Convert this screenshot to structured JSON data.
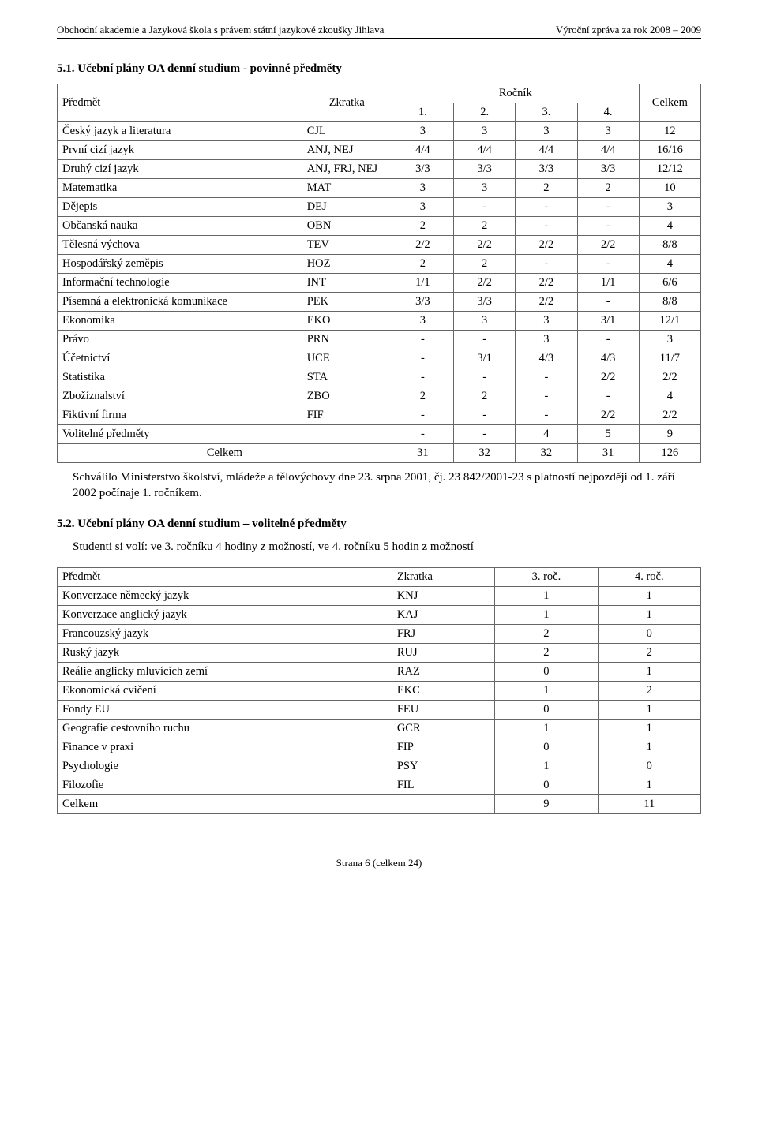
{
  "header": {
    "left": "Obchodní akademie a Jazyková škola s právem státní jazykové zkoušky Jihlava",
    "right": "Výroční zpráva za rok 2008 – 2009"
  },
  "sec1": {
    "heading": "5.1.  Učební plány OA denní studium - povinné předměty",
    "col_subject": "Předmět",
    "col_abbrev": "Zkratka",
    "col_year": "Ročník",
    "col_total": "Celkem",
    "year_cols": [
      "1.",
      "2.",
      "3.",
      "4."
    ],
    "rows": [
      {
        "s": "Český jazyk a literatura",
        "a": "CJL",
        "v": [
          "3",
          "3",
          "3",
          "3",
          "12"
        ]
      },
      {
        "s": "První cizí jazyk",
        "a": "ANJ, NEJ",
        "v": [
          "4/4",
          "4/4",
          "4/4",
          "4/4",
          "16/16"
        ]
      },
      {
        "s": "Druhý cizí jazyk",
        "a": "ANJ, FRJ, NEJ",
        "v": [
          "3/3",
          "3/3",
          "3/3",
          "3/3",
          "12/12"
        ]
      },
      {
        "s": "Matematika",
        "a": "MAT",
        "v": [
          "3",
          "3",
          "2",
          "2",
          "10"
        ]
      },
      {
        "s": "Dějepis",
        "a": "DEJ",
        "v": [
          "3",
          "-",
          "-",
          "-",
          "3"
        ]
      },
      {
        "s": "Občanská nauka",
        "a": "OBN",
        "v": [
          "2",
          "2",
          "-",
          "-",
          "4"
        ]
      },
      {
        "s": "Tělesná výchova",
        "a": "TEV",
        "v": [
          "2/2",
          "2/2",
          "2/2",
          "2/2",
          "8/8"
        ]
      },
      {
        "s": "Hospodářský zeměpis",
        "a": "HOZ",
        "v": [
          "2",
          "2",
          "-",
          "-",
          "4"
        ]
      },
      {
        "s": "Informační technologie",
        "a": "INT",
        "v": [
          "1/1",
          "2/2",
          "2/2",
          "1/1",
          "6/6"
        ]
      },
      {
        "s": "Písemná a elektronická komunikace",
        "a": "PEK",
        "v": [
          "3/3",
          "3/3",
          "2/2",
          "-",
          "8/8"
        ]
      },
      {
        "s": "Ekonomika",
        "a": "EKO",
        "v": [
          "3",
          "3",
          "3",
          "3/1",
          "12/1"
        ]
      },
      {
        "s": "Právo",
        "a": "PRN",
        "v": [
          "-",
          "-",
          "3",
          "-",
          "3"
        ]
      },
      {
        "s": "Účetnictví",
        "a": "UCE",
        "v": [
          "-",
          "3/1",
          "4/3",
          "4/3",
          "11/7"
        ]
      },
      {
        "s": "Statistika",
        "a": "STA",
        "v": [
          "-",
          "-",
          "-",
          "2/2",
          "2/2"
        ]
      },
      {
        "s": "Zbožíznalství",
        "a": "ZBO",
        "v": [
          "2",
          "2",
          "-",
          "-",
          "4"
        ]
      },
      {
        "s": "Fiktivní firma",
        "a": "FIF",
        "v": [
          "-",
          "-",
          "-",
          "2/2",
          "2/2"
        ]
      },
      {
        "s": "Volitelné předměty",
        "a": "",
        "v": [
          "-",
          "-",
          "4",
          "5",
          "9"
        ]
      }
    ],
    "total_label": "Celkem",
    "total_vals": [
      "31",
      "32",
      "32",
      "31",
      "126"
    ],
    "note": "Schválilo Ministerstvo školství, mládeže a tělovýchovy dne 23. srpna 2001, čj. 23 842/2001-23 s platností nejpozději od 1. září 2002 počínaje 1. ročníkem."
  },
  "sec2": {
    "heading": "5.2.  Učební plány OA denní studium – volitelné předměty",
    "intro": "Studenti si volí: ve 3. ročníku 4 hodiny z možností, ve 4. ročníku 5 hodin z možností",
    "col_subject": "Předmět",
    "col_abbrev": "Zkratka",
    "col3": "3. roč.",
    "col4": "4. roč.",
    "rows": [
      {
        "s": "Konverzace německý jazyk",
        "a": "KNJ",
        "v": [
          "1",
          "1"
        ]
      },
      {
        "s": "Konverzace anglický jazyk",
        "a": "KAJ",
        "v": [
          "1",
          "1"
        ]
      },
      {
        "s": "Francouzský jazyk",
        "a": "FRJ",
        "v": [
          "2",
          "0"
        ]
      },
      {
        "s": "Ruský jazyk",
        "a": "RUJ",
        "v": [
          "2",
          "2"
        ]
      },
      {
        "s": "Reálie anglicky mluvících zemí",
        "a": "RAZ",
        "v": [
          "0",
          "1"
        ]
      },
      {
        "s": "Ekonomická cvičení",
        "a": "EKC",
        "v": [
          "1",
          "2"
        ]
      },
      {
        "s": "Fondy EU",
        "a": "FEU",
        "v": [
          "0",
          "1"
        ]
      },
      {
        "s": "Geografie cestovního ruchu",
        "a": "GCR",
        "v": [
          "1",
          "1"
        ]
      },
      {
        "s": "Finance v praxi",
        "a": "FIP",
        "v": [
          "0",
          "1"
        ]
      },
      {
        "s": "Psychologie",
        "a": "PSY",
        "v": [
          "1",
          "0"
        ]
      },
      {
        "s": "Filozofie",
        "a": "FIL",
        "v": [
          "0",
          "1"
        ]
      }
    ],
    "total_label": "Celkem",
    "total_vals": [
      "9",
      "11"
    ]
  },
  "footer": {
    "text": "Strana 6 (celkem 24)"
  }
}
